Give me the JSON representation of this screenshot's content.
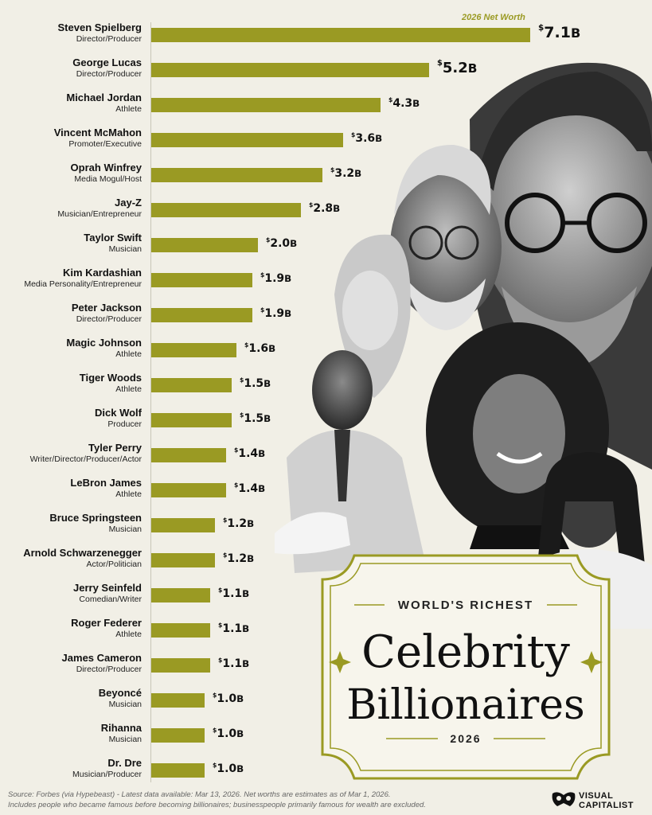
{
  "header": {
    "net_worth_label": "2026 Net Worth"
  },
  "title": {
    "line1": "WORLD'S RICHEST",
    "line2": "Celebrity",
    "line3": "Billionaires",
    "year": "2026"
  },
  "chart_data": {
    "type": "bar",
    "orientation": "horizontal",
    "title": "World's Richest Celebrity Billionaires 2026",
    "value_label": "2026 Net Worth",
    "unit_prefix": "$",
    "unit_suffix": "B",
    "categories": [
      "Steven Spielberg",
      "George Lucas",
      "Michael Jordan",
      "Vincent McMahon",
      "Oprah Winfrey",
      "Jay-Z",
      "Taylor Swift",
      "Kim Kardashian",
      "Peter Jackson",
      "Magic Johnson",
      "Tiger Woods",
      "Dick Wolf",
      "Tyler Perry",
      "LeBron James",
      "Bruce Springsteen",
      "Arnold Schwarzenegger",
      "Jerry Seinfeld",
      "Roger Federer",
      "James Cameron",
      "Beyoncé",
      "Rihanna",
      "Dr. Dre"
    ],
    "roles": [
      "Director/Producer",
      "Director/Producer",
      "Athlete",
      "Promoter/Executive",
      "Media Mogul/Host",
      "Musician/Entrepreneur",
      "Musician",
      "Media Personality/Entrepreneur",
      "Director/Producer",
      "Athlete",
      "Athlete",
      "Producer",
      "Writer/Director/Producer/Actor",
      "Athlete",
      "Musician",
      "Actor/Politician",
      "Comedian/Writer",
      "Athlete",
      "Director/Producer",
      "Musician",
      "Musician",
      "Musician/Producer"
    ],
    "values": [
      7.1,
      5.2,
      4.3,
      3.6,
      3.2,
      2.8,
      2.0,
      1.9,
      1.9,
      1.6,
      1.5,
      1.5,
      1.4,
      1.4,
      1.2,
      1.2,
      1.1,
      1.1,
      1.1,
      1.0,
      1.0,
      1.0
    ],
    "value_labels": [
      "7.1",
      "5.2",
      "4.3",
      "3.6",
      "3.2",
      "2.8",
      "2.0",
      "1.9",
      "1.9",
      "1.6",
      "1.5",
      "1.5",
      "1.4",
      "1.4",
      "1.2",
      "1.2",
      "1.1",
      "1.1",
      "1.1",
      "1.0",
      "1.0",
      "1.0"
    ],
    "xlim": [
      0,
      7.1
    ],
    "bar_color": "#9a9a23",
    "grid": false
  },
  "footer": {
    "line1": "Source: Forbes (via Hypebeast) - Latest data available: Mar 13, 2026. Net worths are estimates as of Mar 1, 2026.",
    "line2": "Includes people who became famous before becoming billionaires; businesspeople primarily famous for wealth are excluded."
  },
  "brand": {
    "line1": "VISUAL",
    "line2": "CAPITALIST"
  },
  "colors": {
    "background": "#f1efe6",
    "accent": "#9a9a23"
  }
}
